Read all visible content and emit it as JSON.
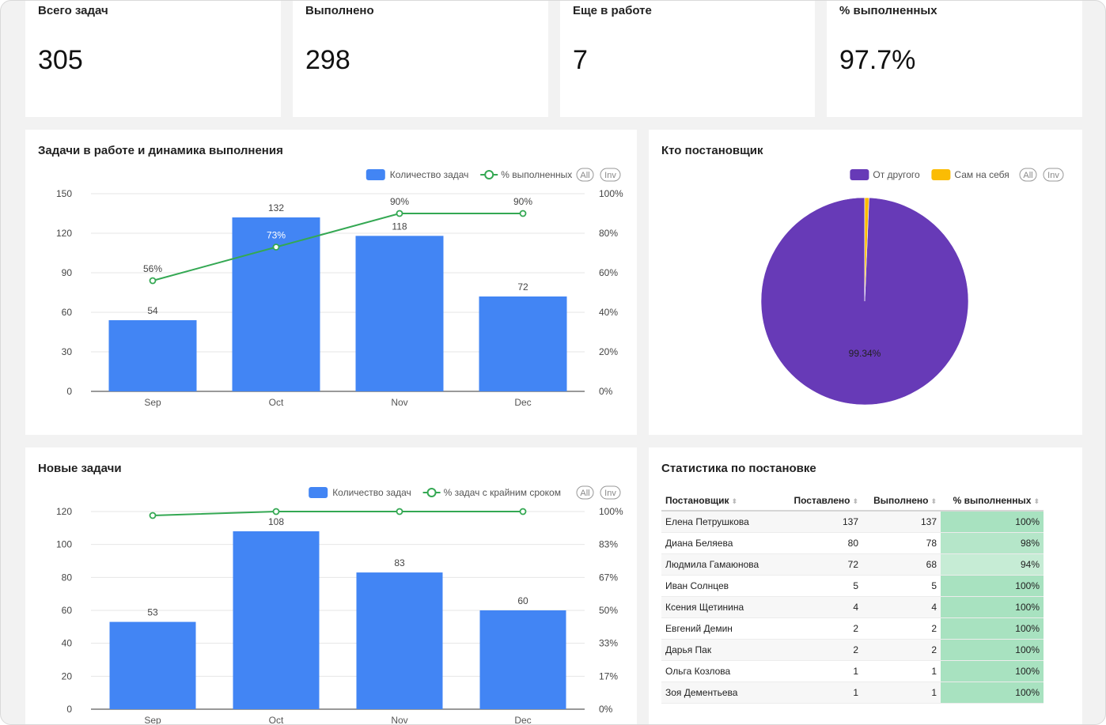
{
  "kpis": [
    {
      "title": "Всего задач",
      "value": "305"
    },
    {
      "title": "Выполнено",
      "value": "298"
    },
    {
      "title": "Еще в работе",
      "value": "7"
    },
    {
      "title": "% выполненных",
      "value": "97.7%"
    }
  ],
  "chart1": {
    "title": "Задачи в работе и динамика выполнения",
    "legend": {
      "bar": "Количество задач",
      "line": "% выполненных",
      "all": "All",
      "inv": "Inv"
    },
    "colors": {
      "bar": "#4285f4",
      "line": "#34a853"
    }
  },
  "chart2": {
    "title": "Кто постановщик",
    "legend": {
      "a": "От другого",
      "b": "Сам на себя",
      "all": "All",
      "inv": "Inv"
    },
    "colors": {
      "a": "#673ab7",
      "b": "#fbbc04"
    }
  },
  "chart3": {
    "title": "Новые задачи",
    "legend": {
      "bar": "Количество задач",
      "line": "% задач с крайним сроком",
      "all": "All",
      "inv": "Inv"
    },
    "colors": {
      "bar": "#4285f4",
      "line": "#34a853"
    }
  },
  "chart_data": [
    {
      "type": "bar",
      "categories": [
        "Sep",
        "Oct",
        "Nov",
        "Dec"
      ],
      "series": [
        {
          "name": "Количество задач",
          "type": "bar",
          "values": [
            54,
            132,
            118,
            72
          ],
          "labels": [
            "54",
            "132",
            "118",
            "72"
          ]
        },
        {
          "name": "% выполненных",
          "type": "line",
          "axis": "right",
          "values": [
            56,
            73,
            90,
            90
          ],
          "labels": [
            "56%",
            "73%",
            "90%",
            "90%"
          ]
        }
      ],
      "ylim": [
        0,
        150
      ],
      "yticks": [
        "0",
        "30",
        "60",
        "90",
        "120",
        "150"
      ],
      "y2lim": [
        0,
        100
      ],
      "y2ticks": [
        "0%",
        "20%",
        "40%",
        "60%",
        "80%",
        "100%"
      ],
      "grid": true,
      "legend": "top-right"
    },
    {
      "type": "pie",
      "categories": [
        "От другого",
        "Сам на себя"
      ],
      "values": [
        99.34,
        0.66
      ],
      "labels": [
        "99.34%",
        ""
      ],
      "legend": "top-right"
    },
    {
      "type": "bar",
      "categories": [
        "Sep",
        "Oct",
        "Nov",
        "Dec"
      ],
      "series": [
        {
          "name": "Количество задач",
          "type": "bar",
          "values": [
            53,
            108,
            83,
            60
          ],
          "labels": [
            "53",
            "108",
            "83",
            "60"
          ]
        },
        {
          "name": "% задач с крайним сроком",
          "type": "line",
          "axis": "right",
          "values": [
            98,
            100,
            100,
            100
          ],
          "labels": []
        }
      ],
      "ylim": [
        0,
        120
      ],
      "yticks": [
        "0",
        "20",
        "40",
        "60",
        "80",
        "100",
        "120"
      ],
      "y2lim": [
        0,
        100
      ],
      "y2ticks": [
        "0%",
        "17%",
        "33%",
        "50%",
        "67%",
        "83%",
        "100%"
      ],
      "grid": true,
      "legend": "top-right"
    }
  ],
  "stats": {
    "title": "Статистика по постановке",
    "headers": [
      "Постановщик",
      "Поставлено",
      "Выполнено",
      "% выполненных"
    ],
    "rows": [
      [
        "Елена Петрушкова",
        "137",
        "137",
        "100%"
      ],
      [
        "Диана Беляева",
        "80",
        "78",
        "98%"
      ],
      [
        "Людмила Гамаюнова",
        "72",
        "68",
        "94%"
      ],
      [
        "Иван Солнцев",
        "5",
        "5",
        "100%"
      ],
      [
        "Ксения Щетинина",
        "4",
        "4",
        "100%"
      ],
      [
        "Евгений Демин",
        "2",
        "2",
        "100%"
      ],
      [
        "Дарья Пак",
        "2",
        "2",
        "100%"
      ],
      [
        "Ольга Козлова",
        "1",
        "1",
        "100%"
      ],
      [
        "Зоя Дементьева",
        "1",
        "1",
        "100%"
      ]
    ]
  }
}
